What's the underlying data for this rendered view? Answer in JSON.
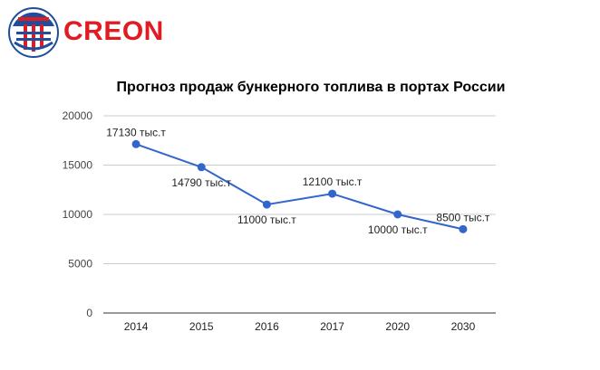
{
  "brand": {
    "name": "CREON",
    "logo_color": "#e01b22",
    "emblem_color": "#1f4e9c"
  },
  "chart_data": {
    "type": "line",
    "title": "Прогноз продаж бункерного топлива в портах России",
    "categories": [
      "2014",
      "2015",
      "2016",
      "2017",
      "2020",
      "2030"
    ],
    "series": [
      {
        "values": [
          17130,
          14790,
          11000,
          12100,
          10000,
          8500
        ],
        "color": "#3366cc"
      }
    ],
    "data_labels": [
      "17130 тыс.т",
      "14790 тыс.т",
      "11000 тыс.т",
      "12100 тыс.т",
      "10000 тыс.т",
      "8500 тыс.т"
    ],
    "y_ticks": [
      "0",
      "5000",
      "10000",
      "15000",
      "20000"
    ],
    "ylim": [
      0,
      20000
    ],
    "grid": true,
    "legend": "none"
  }
}
